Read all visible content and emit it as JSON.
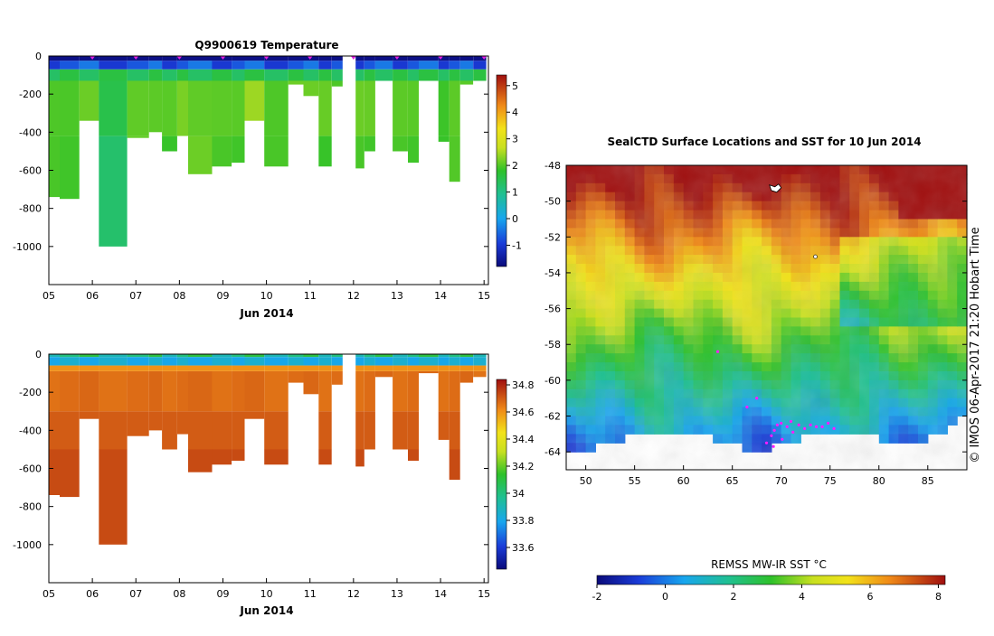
{
  "chart_data": [
    {
      "type": "heatmap",
      "panel": "profile-temperature",
      "title": "Q9900619  Temperature",
      "xlabel": "Jun 2014",
      "ylabel": "",
      "x_ticks": [
        "05",
        "06",
        "07",
        "08",
        "09",
        "10",
        "11",
        "12",
        "13",
        "14",
        "15"
      ],
      "xlim": [
        5,
        15.1
      ],
      "ylim": [
        -1200,
        0
      ],
      "y_ticks": [
        0,
        -200,
        -400,
        -600,
        -800,
        -1000
      ],
      "colorbar": {
        "min": -1.8,
        "max": 5.4,
        "ticks": [
          -1,
          0,
          1,
          2,
          3,
          4,
          5
        ]
      },
      "profiles": [
        {
          "t0": 5.0,
          "t1": 5.25,
          "depth": 740,
          "temp": 2.1
        },
        {
          "t0": 5.25,
          "t1": 5.7,
          "depth": 750,
          "temp": 2.0
        },
        {
          "t0": 5.7,
          "t1": 6.15,
          "depth": 340,
          "temp": 2.1
        },
        {
          "t0": 6.15,
          "t1": 6.8,
          "depth": 1000,
          "temp": 1.4
        },
        {
          "t0": 6.8,
          "t1": 7.3,
          "depth": 430,
          "temp": 2.2
        },
        {
          "t0": 7.3,
          "t1": 7.6,
          "depth": 400,
          "temp": 2.1
        },
        {
          "t0": 7.6,
          "t1": 7.95,
          "depth": 500,
          "temp": 2.0
        },
        {
          "t0": 7.95,
          "t1": 8.2,
          "depth": 420,
          "temp": 2.1
        },
        {
          "t0": 8.2,
          "t1": 8.75,
          "depth": 620,
          "temp": 2.2
        },
        {
          "t0": 8.75,
          "t1": 9.2,
          "depth": 580,
          "temp": 2.1
        },
        {
          "t0": 9.2,
          "t1": 9.5,
          "depth": 560,
          "temp": 2.0
        },
        {
          "t0": 9.5,
          "t1": 9.95,
          "depth": 340,
          "temp": 2.3
        },
        {
          "t0": 9.95,
          "t1": 10.5,
          "depth": 580,
          "temp": 2.1
        },
        {
          "t0": 10.5,
          "t1": 10.85,
          "depth": 150,
          "temp": 2.2
        },
        {
          "t0": 10.85,
          "t1": 11.2,
          "depth": 210,
          "temp": 2.1
        },
        {
          "t0": 11.2,
          "t1": 11.5,
          "depth": 580,
          "temp": 2.0
        },
        {
          "t0": 11.5,
          "t1": 11.75,
          "depth": 160,
          "temp": 2.1
        },
        {
          "t0": 11.75,
          "t1": 12.05,
          "depth": 0,
          "temp": 2.1
        },
        {
          "t0": 12.05,
          "t1": 12.25,
          "depth": 590,
          "temp": 2.1
        },
        {
          "t0": 12.25,
          "t1": 12.5,
          "depth": 500,
          "temp": 2.0
        },
        {
          "t0": 12.5,
          "t1": 12.9,
          "depth": 120,
          "temp": 2.2
        },
        {
          "t0": 12.9,
          "t1": 13.25,
          "depth": 500,
          "temp": 2.1
        },
        {
          "t0": 13.25,
          "t1": 13.5,
          "depth": 560,
          "temp": 2.0
        },
        {
          "t0": 13.5,
          "t1": 13.95,
          "depth": 100,
          "temp": 2.1
        },
        {
          "t0": 13.95,
          "t1": 14.2,
          "depth": 450,
          "temp": 2.0
        },
        {
          "t0": 14.2,
          "t1": 14.45,
          "depth": 660,
          "temp": 2.1
        },
        {
          "t0": 14.45,
          "t1": 14.75,
          "depth": 150,
          "temp": 2.0
        },
        {
          "t0": 14.75,
          "t1": 15.05,
          "depth": 120,
          "temp": 2.1
        }
      ],
      "surface_layer": {
        "depth_top": 0,
        "depth_bottom": 70,
        "temp": -1.6
      },
      "markers_at": [
        6,
        7,
        8,
        9,
        10,
        11,
        12,
        13,
        14,
        15
      ]
    },
    {
      "type": "heatmap",
      "panel": "profile-salinity",
      "title": "",
      "xlabel": "Jun 2014",
      "ylabel": "",
      "x_ticks": [
        "05",
        "06",
        "07",
        "08",
        "09",
        "10",
        "11",
        "12",
        "13",
        "14",
        "15"
      ],
      "xlim": [
        5,
        15.1
      ],
      "ylim": [
        -1200,
        0
      ],
      "y_ticks": [
        0,
        -200,
        -400,
        -600,
        -800,
        -1000
      ],
      "colorbar": {
        "min": 33.44,
        "max": 34.84,
        "ticks": [
          33.6,
          33.8,
          34,
          34.2,
          34.4,
          34.6,
          34.8
        ]
      },
      "surface_layer": {
        "depth_top": 0,
        "depth_bottom": 60,
        "salinity": 33.85
      }
    },
    {
      "type": "heatmap",
      "panel": "sst-map",
      "title": "SealCTD Surface Locations and SST for 10 Jun 2014",
      "xlabel": "",
      "ylabel": "",
      "xlim": [
        48,
        89
      ],
      "ylim": [
        -65,
        -48
      ],
      "x_ticks": [
        50,
        55,
        60,
        65,
        70,
        75,
        80,
        85
      ],
      "y_ticks": [
        -48,
        -50,
        -52,
        -54,
        -56,
        -58,
        -60,
        -62,
        -64
      ],
      "colorbar": {
        "label": "REMSS MW-IR SST °C",
        "min": -2,
        "max": 8.2,
        "ticks": [
          -2,
          0,
          2,
          4,
          6,
          8
        ]
      },
      "track_points": [
        [
          69.0,
          -63.1
        ],
        [
          69.3,
          -62.8
        ],
        [
          69.6,
          -62.5
        ],
        [
          70.0,
          -62.4
        ],
        [
          70.6,
          -62.6
        ],
        [
          71.2,
          -62.9
        ],
        [
          71.8,
          -62.5
        ],
        [
          72.4,
          -62.7
        ],
        [
          73.0,
          -62.5
        ],
        [
          73.6,
          -62.6
        ],
        [
          74.2,
          -62.6
        ],
        [
          74.8,
          -62.4
        ],
        [
          75.4,
          -62.7
        ],
        [
          68.5,
          -63.5
        ],
        [
          69.2,
          -63.7
        ],
        [
          70.1,
          -63.3
        ],
        [
          71.0,
          -62.3
        ],
        [
          66.5,
          -61.5
        ],
        [
          67.5,
          -61.0
        ],
        [
          63.5,
          -58.4
        ]
      ]
    }
  ],
  "side_label": "© IMOS 06-Apr-2017 21:20 Hobart Time"
}
